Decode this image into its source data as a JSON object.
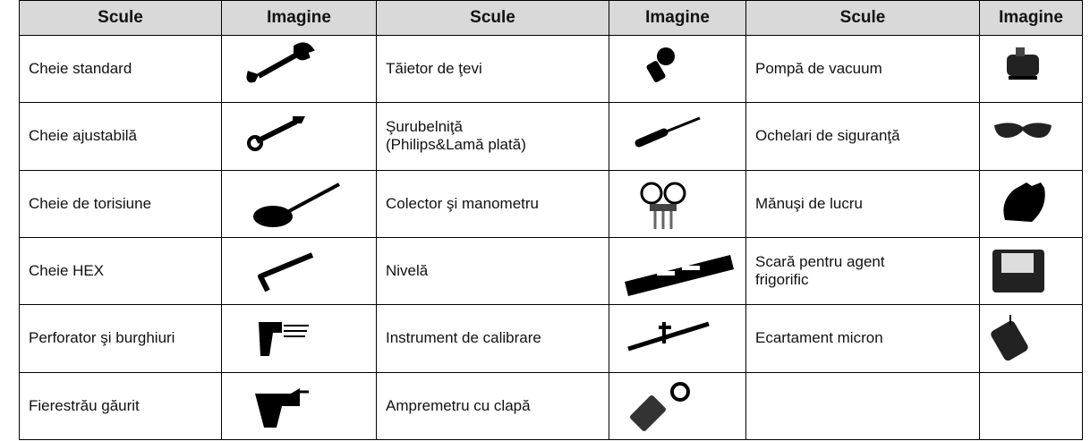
{
  "table": {
    "header": [
      "Scule",
      "Imagine",
      "Scule",
      "Imagine",
      "Scule",
      "Imagine"
    ],
    "rows": [
      [
        "Cheie standard",
        "Tăietor de ţevi",
        "Pompă de vacuum"
      ],
      [
        "Cheie ajustabilă",
        "Şurubelniţă\n(Philips&Lamă plată)",
        "Ochelari de siguranţă"
      ],
      [
        "Cheie de torisiune",
        "Colector şi manometru",
        "Mănuşi de lucru"
      ],
      [
        "Cheie HEX",
        "Nivelă",
        "Scară pentru agent\nfrigorific"
      ],
      [
        "Perforator şi burghiuri",
        "Instrument de calibrare",
        "Ecartament micron"
      ],
      [
        "Fierestrău găurit",
        "Ampremetru cu clapă"
      ]
    ]
  }
}
